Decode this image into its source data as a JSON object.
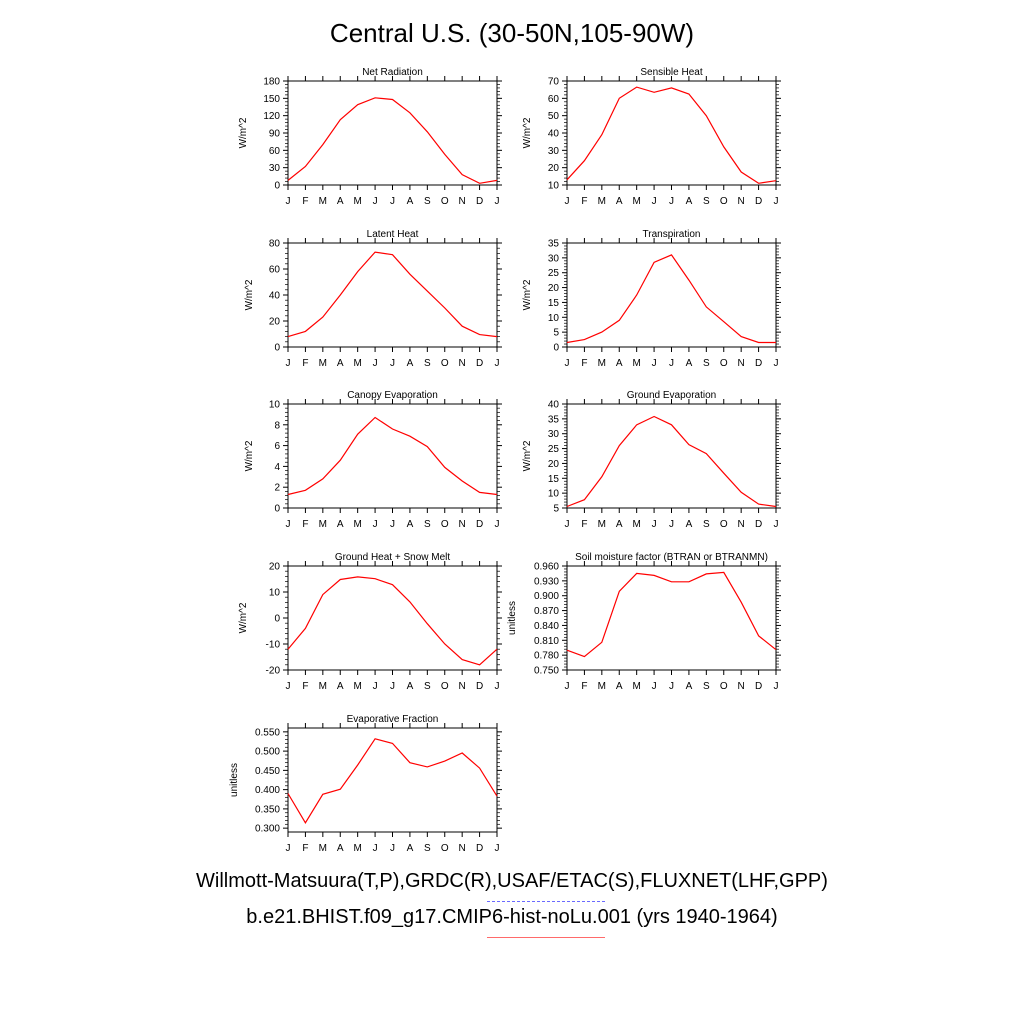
{
  "title": "Central U.S. (30-50N,105-90W)",
  "line_color": "#ff0000",
  "legend": {
    "obs_label": "Willmott-Matsuura(T,P),GRDC(R),USAF/ETAC(S),FLUXNET(LHF,GPP)",
    "obs_color": "#6a6aff",
    "model_label": "b.e21.BHIST.f09_g17.CMIP6-hist-noLu.001 (yrs 1940-1964)",
    "model_color": "#ff6a6a"
  },
  "chart_data": [
    {
      "type": "line",
      "title": "Net Radiation",
      "ylabel": "W/m^2",
      "categories": [
        "J",
        "F",
        "M",
        "A",
        "M",
        "J",
        "J",
        "A",
        "S",
        "O",
        "N",
        "D",
        "J"
      ],
      "ylim": [
        0,
        180
      ],
      "yticks": [
        "0",
        "30",
        "60",
        "90",
        "120",
        "150",
        "180"
      ],
      "values": [
        8,
        32,
        70,
        113,
        139,
        151,
        148,
        125,
        92,
        53,
        18,
        3,
        8
      ]
    },
    {
      "type": "line",
      "title": "Sensible Heat",
      "ylabel": "W/m^2",
      "categories": [
        "J",
        "F",
        "M",
        "A",
        "M",
        "J",
        "J",
        "A",
        "S",
        "O",
        "N",
        "D",
        "J"
      ],
      "ylim": [
        10,
        70
      ],
      "yticks": [
        "10",
        "20",
        "30",
        "40",
        "50",
        "60",
        "70"
      ],
      "values": [
        13,
        24,
        39,
        60,
        66.5,
        63.5,
        66,
        62.5,
        50,
        32,
        17.5,
        11,
        12.5
      ]
    },
    {
      "type": "line",
      "title": "Latent Heat",
      "ylabel": "W/m^2",
      "categories": [
        "J",
        "F",
        "M",
        "A",
        "M",
        "J",
        "J",
        "A",
        "S",
        "O",
        "N",
        "D",
        "J"
      ],
      "ylim": [
        0,
        80
      ],
      "yticks": [
        "0",
        "20",
        "40",
        "60",
        "80"
      ],
      "values": [
        8,
        12,
        23,
        40,
        58,
        73,
        71,
        56,
        43,
        30,
        16,
        9.5,
        8
      ]
    },
    {
      "type": "line",
      "title": "Transpiration",
      "ylabel": "W/m^2",
      "categories": [
        "J",
        "F",
        "M",
        "A",
        "M",
        "J",
        "J",
        "A",
        "S",
        "O",
        "N",
        "D",
        "J"
      ],
      "ylim": [
        0,
        35
      ],
      "yticks": [
        "0",
        "5",
        "10",
        "15",
        "20",
        "25",
        "30",
        "35"
      ],
      "values": [
        1.5,
        2.5,
        5,
        9,
        17.5,
        28.5,
        31,
        22.5,
        13.5,
        8.5,
        3.5,
        1.5,
        1.5
      ]
    },
    {
      "type": "line",
      "title": "Canopy Evaporation",
      "ylabel": "W/m^2",
      "categories": [
        "J",
        "F",
        "M",
        "A",
        "M",
        "J",
        "J",
        "A",
        "S",
        "O",
        "N",
        "D",
        "J"
      ],
      "ylim": [
        0,
        10
      ],
      "yticks": [
        "0",
        "2",
        "4",
        "6",
        "8",
        "10"
      ],
      "values": [
        1.3,
        1.7,
        2.8,
        4.6,
        7.1,
        8.7,
        7.6,
        6.9,
        5.9,
        3.9,
        2.6,
        1.5,
        1.3
      ]
    },
    {
      "type": "line",
      "title": "Ground Evaporation",
      "ylabel": "W/m^2",
      "categories": [
        "J",
        "F",
        "M",
        "A",
        "M",
        "J",
        "J",
        "A",
        "S",
        "O",
        "N",
        "D",
        "J"
      ],
      "ylim": [
        5,
        40
      ],
      "yticks": [
        "5",
        "10",
        "15",
        "20",
        "25",
        "30",
        "35",
        "40"
      ],
      "values": [
        5.5,
        7.8,
        15.5,
        26,
        33,
        35.8,
        33,
        26.3,
        23.3,
        16.7,
        10.3,
        6.3,
        5.5
      ]
    },
    {
      "type": "line",
      "title": "Ground Heat + Snow Melt",
      "ylabel": "W/m^2",
      "categories": [
        "J",
        "F",
        "M",
        "A",
        "M",
        "J",
        "J",
        "A",
        "S",
        "O",
        "N",
        "D",
        "J"
      ],
      "ylim": [
        -20,
        20
      ],
      "yticks": [
        "-20",
        "-10",
        "0",
        "10",
        "20"
      ],
      "values": [
        -12,
        -4,
        9,
        14.8,
        15.8,
        15.1,
        12.8,
        6.2,
        -2.2,
        -10,
        -16,
        -18,
        -12
      ]
    },
    {
      "type": "line",
      "title": "Soil moisture factor (BTRAN or BTRANMN)",
      "ylabel": "unitless",
      "categories": [
        "J",
        "F",
        "M",
        "A",
        "M",
        "J",
        "J",
        "A",
        "S",
        "O",
        "N",
        "D",
        "J"
      ],
      "ylim": [
        0.75,
        0.96
      ],
      "yticks": [
        "0.750",
        "0.780",
        "0.810",
        "0.840",
        "0.870",
        "0.900",
        "0.930",
        "0.960"
      ],
      "values": [
        0.79,
        0.777,
        0.806,
        0.909,
        0.945,
        0.941,
        0.928,
        0.928,
        0.944,
        0.947,
        0.887,
        0.819,
        0.791
      ]
    },
    {
      "type": "line",
      "title": "Evaporative Fraction",
      "ylabel": "unitless",
      "categories": [
        "J",
        "F",
        "M",
        "A",
        "M",
        "J",
        "J",
        "A",
        "S",
        "O",
        "N",
        "D",
        "J"
      ],
      "ylim": [
        0.29,
        0.56
      ],
      "yticks": [
        "0.300",
        "0.350",
        "0.400",
        "0.450",
        "0.500",
        "0.550"
      ],
      "values": [
        0.39,
        0.314,
        0.388,
        0.401,
        0.464,
        0.532,
        0.52,
        0.47,
        0.459,
        0.474,
        0.495,
        0.456,
        0.383
      ]
    }
  ]
}
